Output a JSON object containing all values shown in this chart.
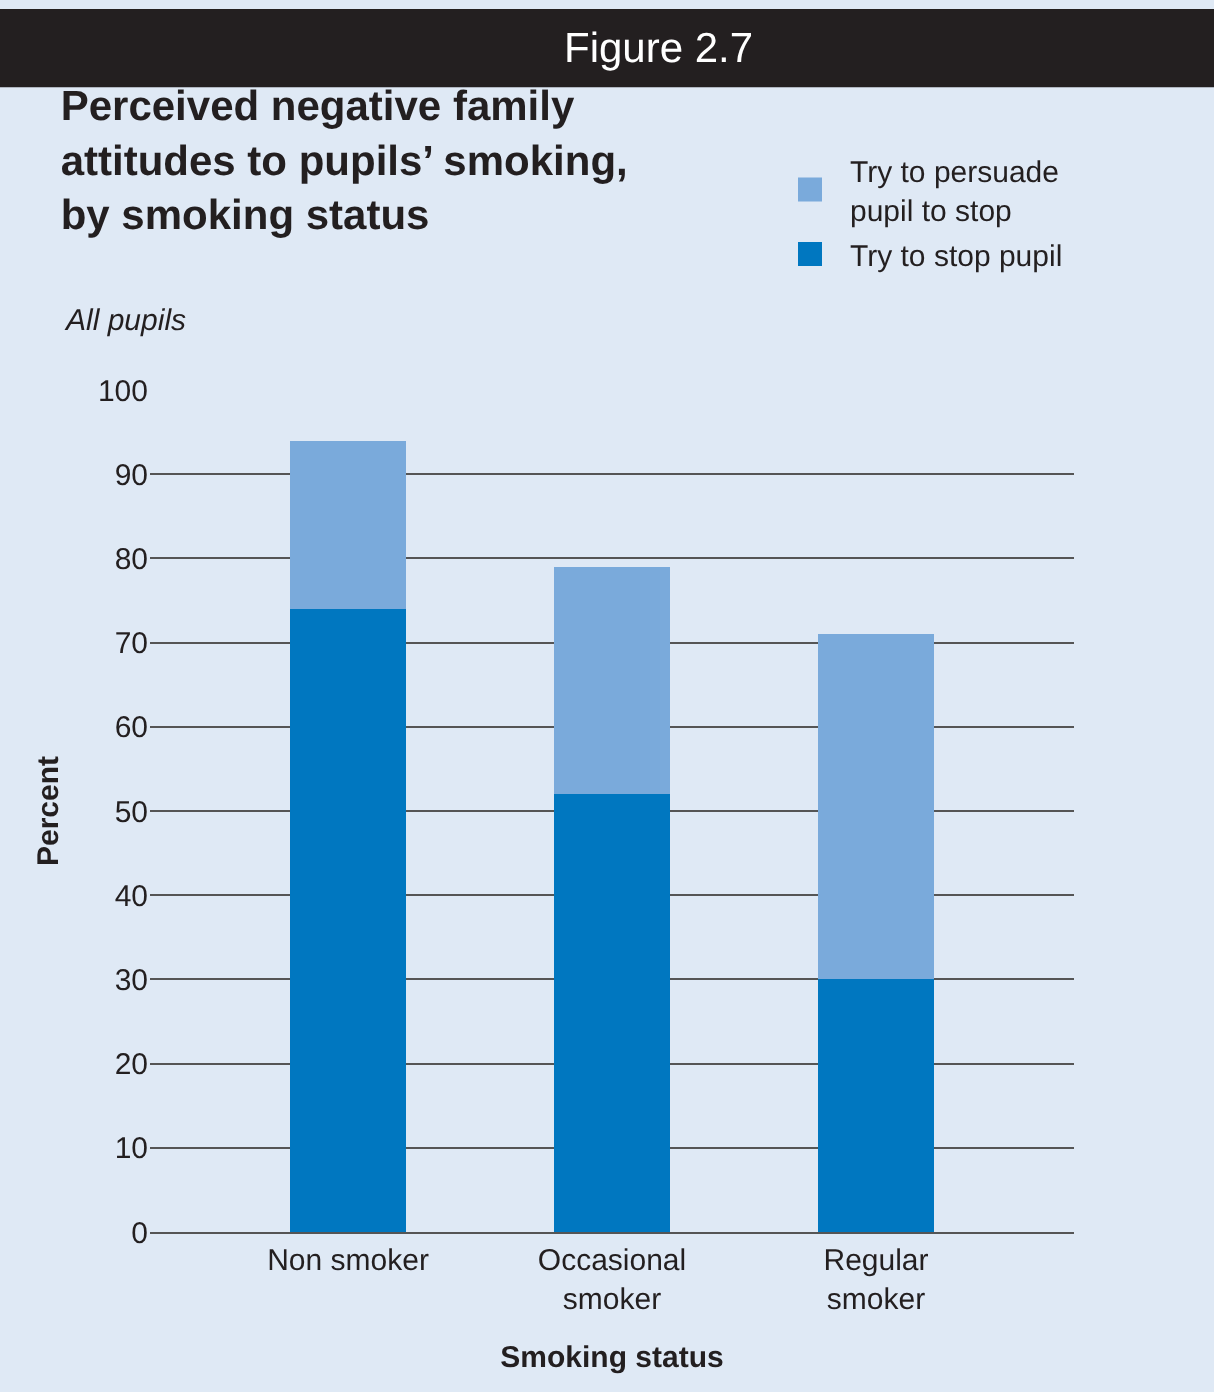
{
  "chart_data": {
    "type": "bar",
    "stacked": true,
    "title": "Perceived negative family attitudes to pupils’ smoking, by smoking status",
    "subtitle": "All pupils",
    "annotations": [
      "Figure 2.7"
    ],
    "xlabel": "Smoking status",
    "ylabel": "Percent",
    "categories": [
      "Non smoker",
      "Occasional smoker",
      "Regular smoker"
    ],
    "series": [
      {
        "name": "Try to stop pupil",
        "color": "#0077c0",
        "values": [
          74,
          52,
          30
        ]
      },
      {
        "name": "Try to persuade pupil to stop",
        "color": "#7aaadb",
        "values": [
          20,
          27,
          41
        ]
      }
    ],
    "ylim": [
      0,
      100
    ],
    "yticks": [
      0,
      10,
      20,
      30,
      40,
      50,
      60,
      70,
      80,
      90,
      100
    ],
    "grid": "y",
    "legend": "top right"
  }
}
